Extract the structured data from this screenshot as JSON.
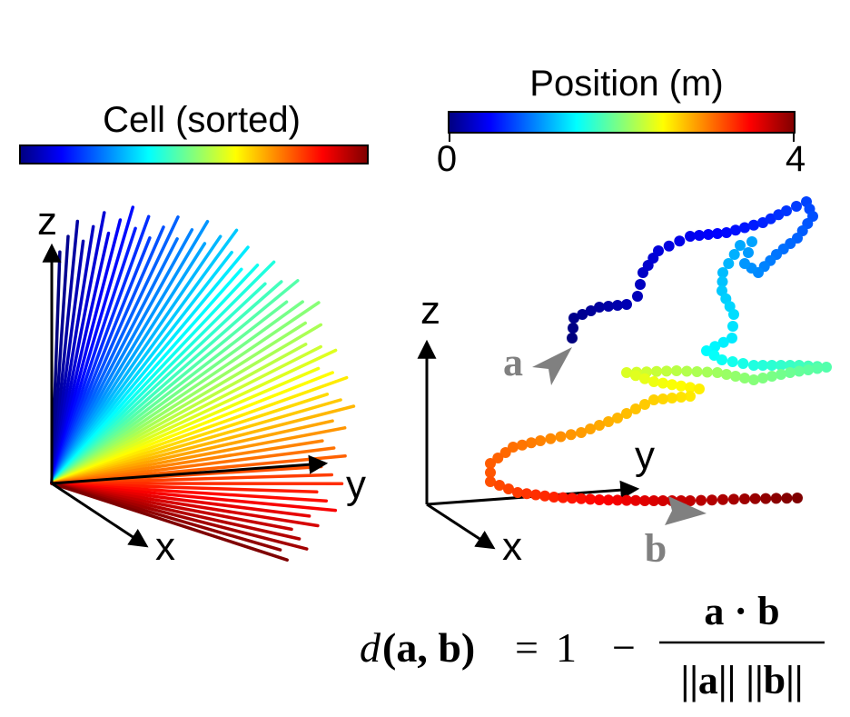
{
  "left_panel": {
    "colorbar_title": "Cell (sorted)",
    "axis_z": "z",
    "axis_y": "y",
    "axis_x": "x"
  },
  "right_panel": {
    "colorbar_title": "Position (m)",
    "colorbar_min": "0",
    "colorbar_max": "4",
    "axis_z": "z",
    "axis_y": "y",
    "axis_x": "x",
    "point_a_label": "a",
    "point_b_label": "b"
  },
  "formula": {
    "lhs_fn": "d",
    "lhs_args": "(a, b)",
    "equals": "=",
    "one": "1",
    "minus": "−",
    "numerator": "a · b",
    "denominator": "||a|| ||b||"
  },
  "colors": {
    "jet": [
      "#00007f",
      "#0000ff",
      "#007fff",
      "#00ffff",
      "#7fff7f",
      "#ffff00",
      "#ff7f00",
      "#ff0000",
      "#7f0000"
    ],
    "axis": "#000000",
    "pointer": "#808080"
  }
}
